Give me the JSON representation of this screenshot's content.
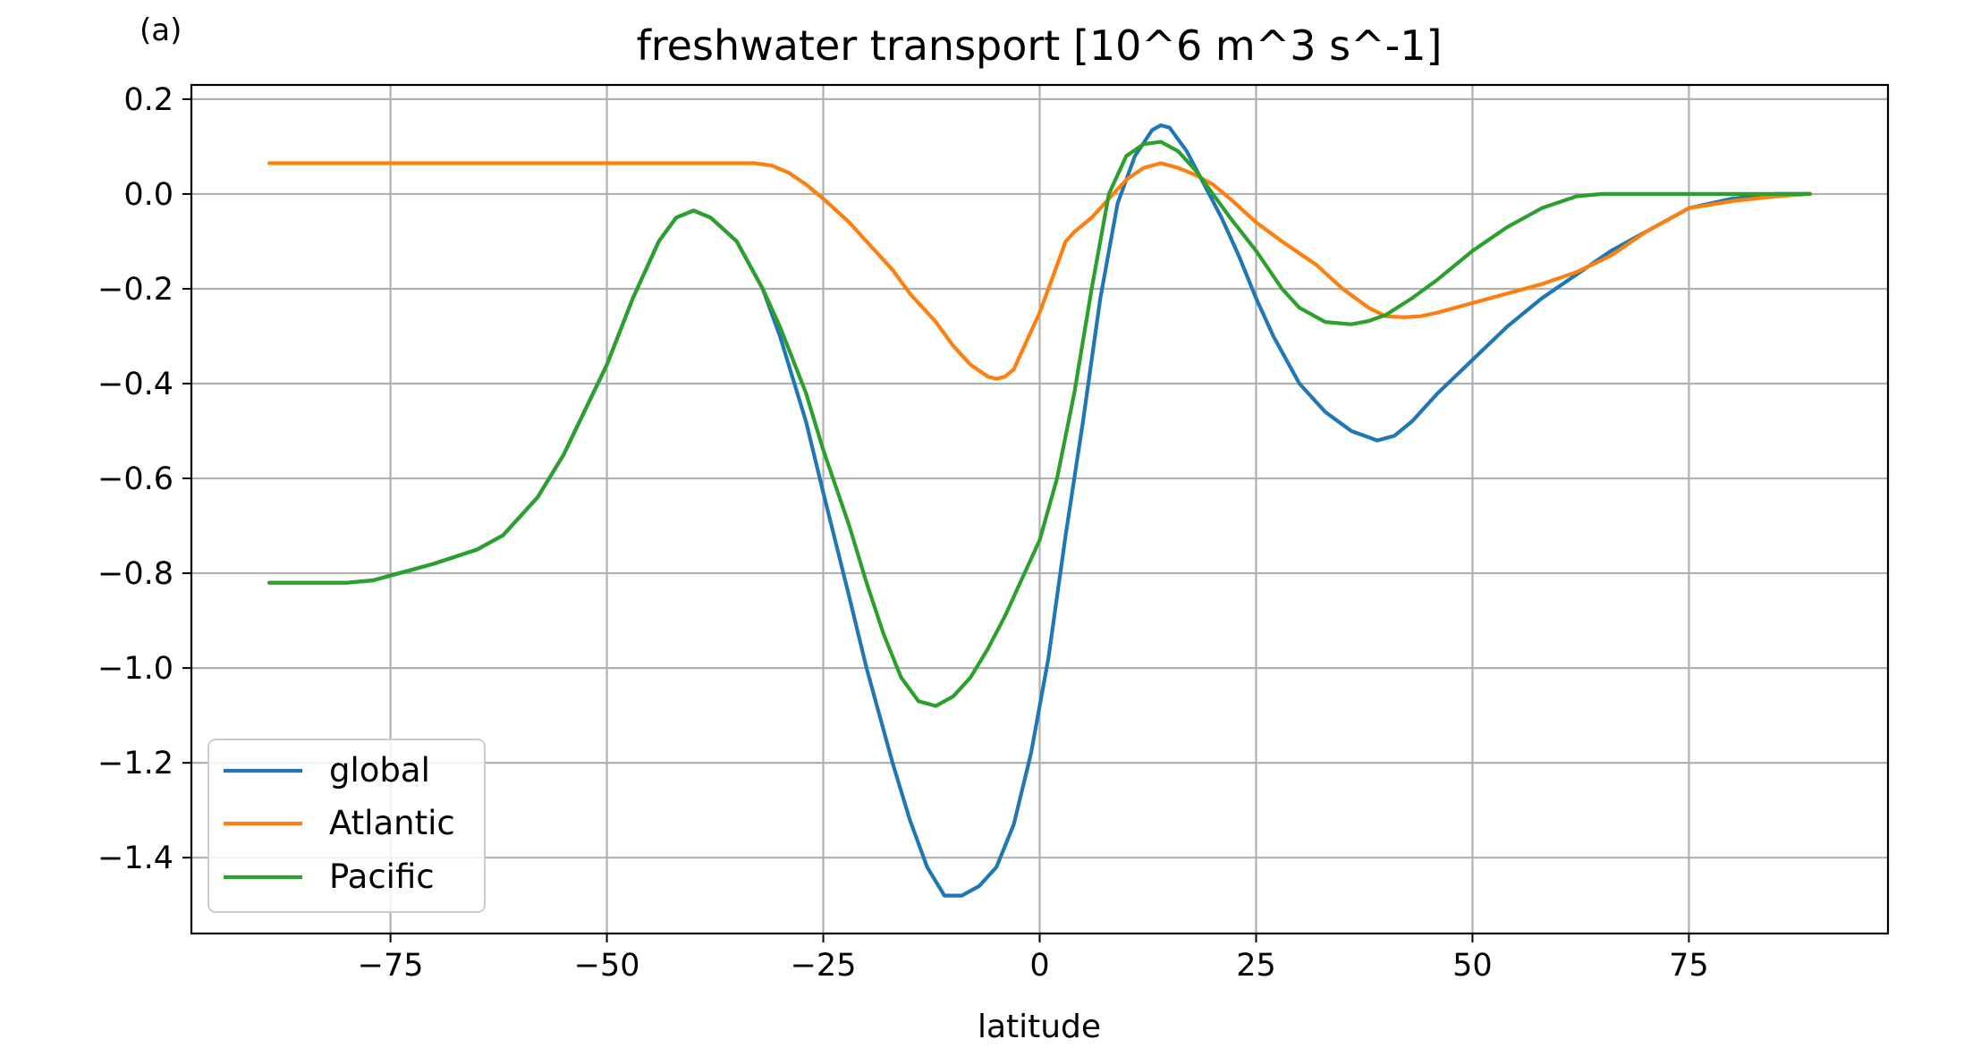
{
  "chart_data": {
    "type": "line",
    "panel_label": "(a)",
    "title": "freshwater transport [10^6 m^3 s^-1]",
    "xlabel": "latitude",
    "ylabel": "",
    "xlim": [
      -98,
      98
    ],
    "ylim": [
      -1.56,
      0.23
    ],
    "xticks": [
      -75,
      -50,
      -25,
      0,
      25,
      50,
      75
    ],
    "xtick_labels": [
      "−75",
      "−50",
      "−25",
      "0",
      "25",
      "50",
      "75"
    ],
    "yticks": [
      0.2,
      0.0,
      -0.2,
      -0.4,
      -0.6,
      -0.8,
      -1.0,
      -1.2,
      -1.4
    ],
    "ytick_labels": [
      "0.2",
      "0.0",
      "−0.2",
      "−0.4",
      "−0.6",
      "−0.8",
      "−1.0",
      "−1.2",
      "−1.4"
    ],
    "grid": true,
    "legend_position": "lower-left",
    "series": [
      {
        "name": "global",
        "color": "#1f77b4",
        "x": [
          -89,
          -85,
          -80,
          -77,
          -75,
          -70,
          -65,
          -62,
          -58,
          -55,
          -50,
          -47,
          -44,
          -42,
          -40,
          -38,
          -35,
          -32,
          -30,
          -27,
          -25,
          -22,
          -20,
          -17,
          -15,
          -13,
          -11,
          -9,
          -7,
          -5,
          -3,
          -1,
          1,
          3,
          5,
          7,
          9,
          11,
          13,
          14,
          15,
          17,
          19,
          21,
          23,
          25,
          27,
          30,
          33,
          36,
          39,
          41,
          43,
          46,
          50,
          54,
          58,
          62,
          66,
          70,
          75,
          80,
          85,
          89
        ],
        "y": [
          -0.82,
          -0.82,
          -0.82,
          -0.815,
          -0.805,
          -0.78,
          -0.75,
          -0.72,
          -0.64,
          -0.55,
          -0.36,
          -0.22,
          -0.1,
          -0.05,
          -0.035,
          -0.05,
          -0.1,
          -0.2,
          -0.3,
          -0.48,
          -0.63,
          -0.85,
          -1.0,
          -1.2,
          -1.32,
          -1.42,
          -1.48,
          -1.48,
          -1.46,
          -1.42,
          -1.33,
          -1.18,
          -0.98,
          -0.72,
          -0.48,
          -0.22,
          -0.02,
          0.08,
          0.135,
          0.145,
          0.14,
          0.09,
          0.02,
          -0.05,
          -0.13,
          -0.22,
          -0.3,
          -0.4,
          -0.46,
          -0.5,
          -0.52,
          -0.51,
          -0.48,
          -0.42,
          -0.35,
          -0.28,
          -0.22,
          -0.17,
          -0.12,
          -0.08,
          -0.03,
          -0.01,
          0.0,
          0.0
        ]
      },
      {
        "name": "Atlantic",
        "color": "#ff7f0e",
        "x": [
          -89,
          -80,
          -70,
          -60,
          -50,
          -40,
          -35,
          -33,
          -31,
          -29,
          -27,
          -25,
          -22,
          -20,
          -17,
          -15,
          -12,
          -10,
          -8,
          -6,
          -5,
          -4,
          -3,
          -2,
          0,
          2,
          3,
          4,
          6,
          8,
          10,
          12,
          14,
          16,
          18,
          20,
          22,
          25,
          28,
          32,
          35,
          38,
          40,
          42,
          44,
          46,
          50,
          54,
          58,
          62,
          66,
          70,
          75,
          80,
          85,
          89
        ],
        "y": [
          0.065,
          0.065,
          0.065,
          0.065,
          0.065,
          0.065,
          0.065,
          0.065,
          0.06,
          0.045,
          0.02,
          -0.01,
          -0.06,
          -0.1,
          -0.16,
          -0.21,
          -0.27,
          -0.32,
          -0.36,
          -0.385,
          -0.39,
          -0.385,
          -0.37,
          -0.33,
          -0.25,
          -0.15,
          -0.1,
          -0.08,
          -0.05,
          -0.01,
          0.03,
          0.055,
          0.065,
          0.055,
          0.04,
          0.02,
          -0.01,
          -0.06,
          -0.1,
          -0.15,
          -0.2,
          -0.24,
          -0.258,
          -0.26,
          -0.258,
          -0.25,
          -0.23,
          -0.21,
          -0.19,
          -0.165,
          -0.13,
          -0.08,
          -0.03,
          -0.015,
          -0.005,
          0.0
        ]
      },
      {
        "name": "Pacific",
        "color": "#2ca02c",
        "x": [
          -89,
          -85,
          -80,
          -77,
          -75,
          -70,
          -65,
          -62,
          -58,
          -55,
          -50,
          -47,
          -44,
          -42,
          -40,
          -38,
          -35,
          -32,
          -30,
          -27,
          -25,
          -22,
          -20,
          -18,
          -16,
          -14,
          -12,
          -10,
          -8,
          -6,
          -4,
          -2,
          0,
          2,
          4,
          6,
          8,
          10,
          12,
          14,
          16,
          18,
          20,
          22,
          25,
          28,
          30,
          33,
          36,
          38,
          40,
          43,
          46,
          50,
          54,
          58,
          62,
          65,
          70,
          75,
          80,
          85,
          89
        ],
        "y": [
          -0.82,
          -0.82,
          -0.82,
          -0.815,
          -0.805,
          -0.78,
          -0.75,
          -0.72,
          -0.64,
          -0.55,
          -0.36,
          -0.22,
          -0.1,
          -0.05,
          -0.035,
          -0.05,
          -0.1,
          -0.2,
          -0.28,
          -0.42,
          -0.54,
          -0.7,
          -0.82,
          -0.93,
          -1.02,
          -1.07,
          -1.08,
          -1.06,
          -1.02,
          -0.96,
          -0.89,
          -0.81,
          -0.73,
          -0.6,
          -0.42,
          -0.2,
          0.0,
          0.08,
          0.105,
          0.11,
          0.09,
          0.05,
          0.0,
          -0.05,
          -0.12,
          -0.2,
          -0.24,
          -0.27,
          -0.275,
          -0.268,
          -0.255,
          -0.22,
          -0.18,
          -0.12,
          -0.07,
          -0.03,
          -0.005,
          0.0,
          0.0,
          0.0,
          0.0,
          0.0,
          0.0
        ]
      }
    ]
  }
}
